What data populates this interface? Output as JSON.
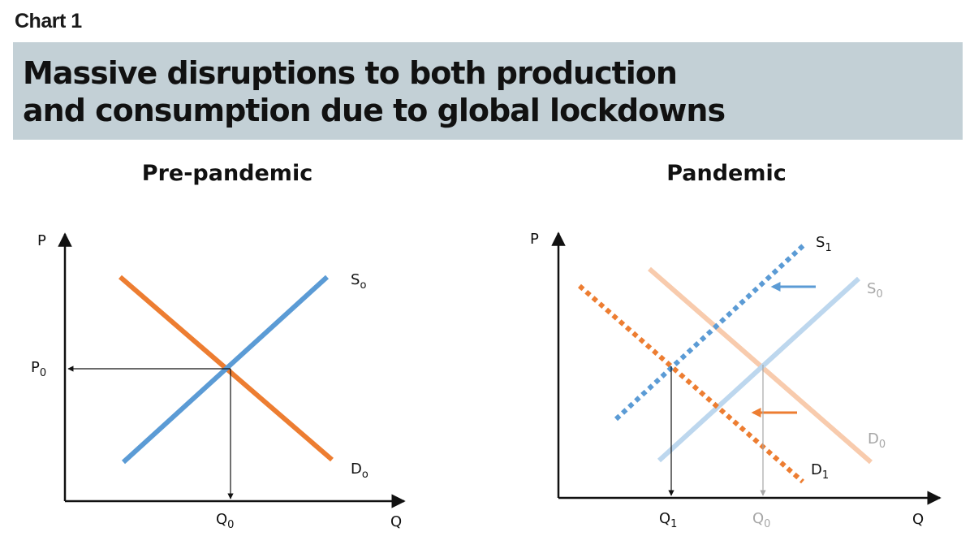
{
  "header": {
    "chart_number": "Chart 1",
    "title_line1": "Massive disruptions to both production",
    "title_line2": "and consumption due to global lockdowns"
  },
  "panels": {
    "pre": {
      "title": "Pre-pandemic",
      "y_axis": "P",
      "x_axis": "Q",
      "price_label": "P",
      "price_sub": "0",
      "quantity_label": "Q",
      "quantity_sub": "0",
      "supply_label": "S",
      "supply_sub": "o",
      "demand_label": "D",
      "demand_sub": "o"
    },
    "pandemic": {
      "title": "Pandemic",
      "y_axis": "P",
      "x_axis": "Q",
      "q1_label": "Q",
      "q1_sub": "1",
      "q0_label": "Q",
      "q0_sub": "0",
      "s1_label": "S",
      "s1_sub": "1",
      "s0_label": "S",
      "s0_sub": "0",
      "d0_label": "D",
      "d0_sub": "0",
      "d1_label": "D",
      "d1_sub": "1"
    }
  },
  "colors": {
    "supply": "#5b9bd5",
    "demand": "#ed7d31",
    "supply_faded": "#bdd7ee",
    "demand_faded": "#f8cbad",
    "banner": "#c3d0d6",
    "grey_label": "#a6a6a6"
  }
}
